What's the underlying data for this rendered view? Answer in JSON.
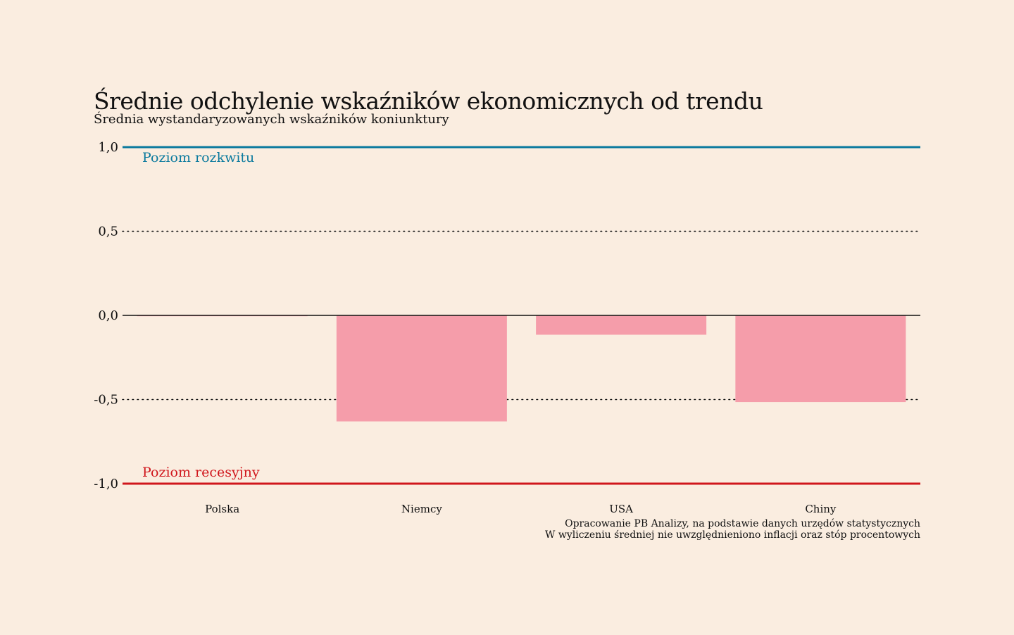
{
  "chart_data": {
    "type": "bar",
    "title": "Średnie odchylenie wskaźników ekonomicznych od trendu",
    "subtitle": "Średnia wystandaryzowanych wskaźników koniunktury",
    "categories": [
      "Polska",
      "Niemcy",
      "USA",
      "Chiny"
    ],
    "values": [
      -0.005,
      -0.63,
      -0.115,
      -0.515
    ],
    "ylim": [
      -1.0,
      1.0
    ],
    "yticks": [
      1.0,
      0.5,
      0.0,
      -0.5,
      -1.0
    ],
    "ytick_labels": [
      "1,0",
      "0,5",
      "0,0",
      "-0,5",
      "-1,0"
    ],
    "grid": "dotted",
    "reference_lines": [
      {
        "value": 1.0,
        "label": "Poziom rozkwitu",
        "color": "#0B7A9E"
      },
      {
        "value": -1.0,
        "label": "Poziom recesyjny",
        "color": "#D0161C"
      }
    ],
    "bar_color": "#F59DAA",
    "zero_line_color": "#111111",
    "notes": [
      "Opracowanie PB Analizy, na podstawie danych urzędów statystycznych",
      "W wyliczeniu średniej nie uwzględnieniono inflacji oraz stóp procentowych"
    ]
  }
}
